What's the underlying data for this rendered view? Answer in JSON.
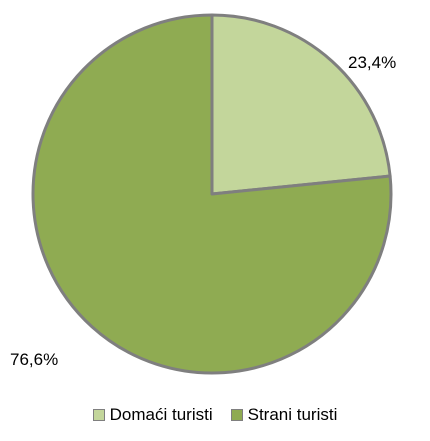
{
  "chart_data": {
    "type": "pie",
    "slices": [
      {
        "name": "Domaći turisti",
        "value": 23.4,
        "label": "23,4%",
        "color": "#c3d69b"
      },
      {
        "name": "Strani turisti",
        "value": 76.6,
        "label": "76,6%",
        "color": "#8fab52"
      }
    ],
    "start_angle_deg": 0,
    "direction": "clockwise",
    "border_color": "#7f7f7f",
    "legend_position": "bottom"
  }
}
